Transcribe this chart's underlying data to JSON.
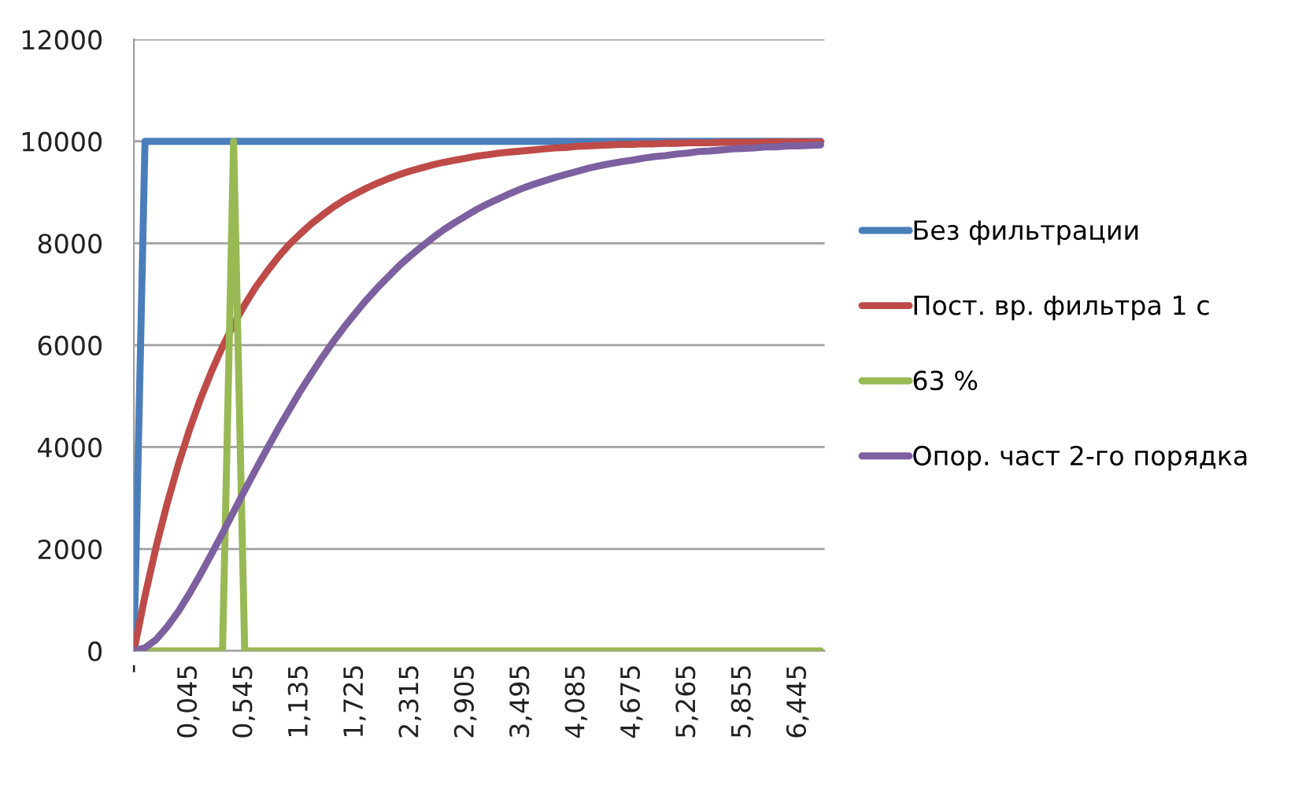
{
  "chart_data": {
    "type": "line",
    "categories": [
      "-",
      null,
      null,
      null,
      null,
      "0,045",
      null,
      null,
      null,
      null,
      "0,545",
      null,
      null,
      null,
      null,
      "1,135",
      null,
      null,
      null,
      null,
      "1,725",
      null,
      null,
      null,
      null,
      "2,315",
      null,
      null,
      null,
      null,
      "2,905",
      null,
      null,
      null,
      null,
      "3,495",
      null,
      null,
      null,
      null,
      "4,085",
      null,
      null,
      null,
      null,
      "4,675",
      null,
      null,
      null,
      null,
      "5,265",
      null,
      null,
      null,
      null,
      "5,855",
      null,
      null,
      null,
      null,
      "6,445",
      null,
      null
    ],
    "series": [
      {
        "name": "Без фильтрации",
        "color": "#4a7ebb",
        "values": [
          0,
          10000,
          10000,
          10000,
          10000,
          10000,
          10000,
          10000,
          10000,
          10000,
          10000,
          10000,
          10000,
          10000,
          10000,
          10000,
          10000,
          10000,
          10000,
          10000,
          10000,
          10000,
          10000,
          10000,
          10000,
          10000,
          10000,
          10000,
          10000,
          10000,
          10000,
          10000,
          10000,
          10000,
          10000,
          10000,
          10000,
          10000,
          10000,
          10000,
          10000,
          10000,
          10000,
          10000,
          10000,
          10000,
          10000,
          10000,
          10000,
          10000,
          10000,
          10000,
          10000,
          10000,
          10000,
          10000,
          10000,
          10000,
          10000,
          10000,
          10000,
          10000,
          10000
        ]
      },
      {
        "name": "Пост. вр. фильтра 1 с",
        "color": "#be4b48",
        "values": [
          0,
          1080,
          2040,
          2890,
          3650,
          4330,
          4940,
          5480,
          5970,
          6400,
          6790,
          7140,
          7440,
          7720,
          7970,
          8180,
          8380,
          8550,
          8710,
          8850,
          8970,
          9080,
          9180,
          9270,
          9350,
          9420,
          9480,
          9540,
          9590,
          9630,
          9670,
          9710,
          9740,
          9770,
          9790,
          9810,
          9830,
          9850,
          9870,
          9880,
          9900,
          9910,
          9920,
          9930,
          9940,
          9940,
          9950,
          9950,
          9960,
          9960,
          9970,
          9970,
          9970,
          9980,
          9980,
          9980,
          9980,
          9990,
          9990,
          9990,
          9990,
          9990,
          9990
        ]
      },
      {
        "name": "63 %",
        "color": "#98b954",
        "values": [
          0,
          0,
          0,
          0,
          0,
          0,
          0,
          0,
          0,
          10000,
          0,
          0,
          0,
          0,
          0,
          0,
          0,
          0,
          0,
          0,
          0,
          0,
          0,
          0,
          0,
          0,
          0,
          0,
          0,
          0,
          0,
          0,
          0,
          0,
          0,
          0,
          0,
          0,
          0,
          0,
          0,
          0,
          0,
          0,
          0,
          0,
          0,
          0,
          0,
          0,
          0,
          0,
          0,
          0,
          0,
          0,
          0,
          0,
          0,
          0,
          0,
          0,
          0
        ]
      },
      {
        "name": "Опор. част 2-го порядка",
        "color": "#7d60a0",
        "values": [
          0,
          60,
          220,
          470,
          770,
          1120,
          1500,
          1900,
          2310,
          2730,
          3150,
          3560,
          3960,
          4350,
          4720,
          5090,
          5430,
          5760,
          6070,
          6360,
          6630,
          6890,
          7130,
          7350,
          7570,
          7760,
          7940,
          8110,
          8270,
          8410,
          8540,
          8670,
          8780,
          8880,
          8980,
          9070,
          9150,
          9220,
          9290,
          9350,
          9410,
          9470,
          9520,
          9560,
          9600,
          9630,
          9670,
          9700,
          9720,
          9750,
          9770,
          9800,
          9810,
          9830,
          9850,
          9860,
          9870,
          9890,
          9890,
          9910,
          9910,
          9920,
          9930
        ]
      }
    ],
    "ylim": [
      0,
      12000
    ],
    "yticks": [
      0,
      2000,
      4000,
      6000,
      8000,
      10000,
      12000
    ],
    "grid": "y",
    "legend": "right",
    "marker": "none",
    "line_style": "solid"
  }
}
